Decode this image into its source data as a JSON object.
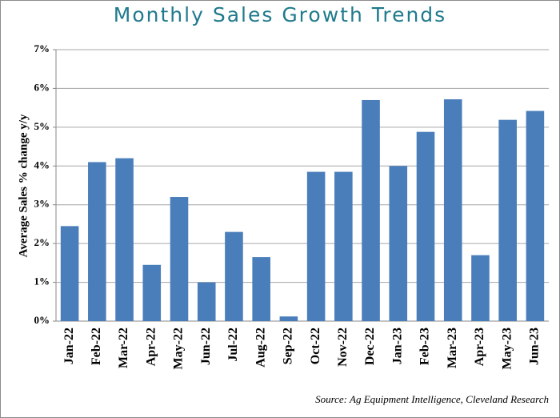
{
  "chart_data": {
    "type": "bar",
    "title": "Monthly Sales Growth Trends",
    "y_label": "Average Sales % change y/y",
    "source": "Source: Ag Equipment Intelligence, Cleveland Research",
    "categories": [
      "Jan-22",
      "Feb-22",
      "Mar-22",
      "Apr-22",
      "May-22",
      "Jun-22",
      "Jul-22",
      "Aug-22",
      "Sep-22",
      "Oct-22",
      "Nov-22",
      "Dec-22",
      "Jan-23",
      "Feb-23",
      "Mar-23",
      "Apr-23",
      "May-23",
      "Jun-23"
    ],
    "values": [
      2.45,
      4.1,
      4.2,
      1.45,
      3.2,
      1.0,
      2.3,
      1.65,
      0.12,
      3.85,
      3.85,
      5.7,
      4.0,
      4.88,
      5.72,
      1.7,
      5.19,
      5.42
    ],
    "color": "#4a7ebb",
    "ylim": [
      0,
      7
    ],
    "yticks": [
      {
        "value": 0,
        "label": "0%"
      },
      {
        "value": 1,
        "label": "1%"
      },
      {
        "value": 2,
        "label": "2%"
      },
      {
        "value": 3,
        "label": "3%"
      },
      {
        "value": 4,
        "label": "4%"
      },
      {
        "value": 5,
        "label": "5%"
      },
      {
        "value": 6,
        "label": "6%"
      },
      {
        "value": 7,
        "label": "7%"
      }
    ],
    "grid": true
  }
}
